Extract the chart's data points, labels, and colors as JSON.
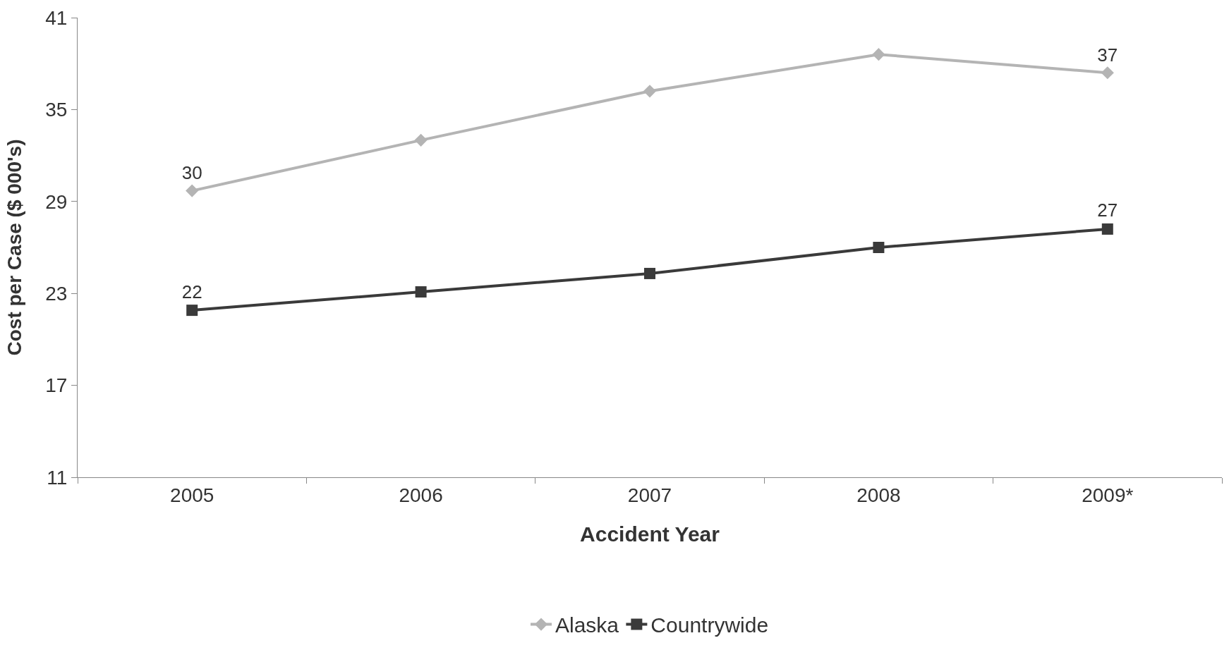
{
  "chart_data": {
    "type": "line",
    "xlabel": "Accident Year",
    "ylabel": "Cost per Case ($ 000's)",
    "categories": [
      "2005",
      "2006",
      "2007",
      "2008",
      "2009*"
    ],
    "series": [
      {
        "name": "Alaska",
        "color": "#b4b4b4",
        "marker": "diamond",
        "values": [
          29.7,
          33.0,
          36.2,
          38.6,
          37.4
        ],
        "value_labels": [
          "30",
          null,
          null,
          null,
          "37"
        ]
      },
      {
        "name": "Countrywide",
        "color": "#3a3a3a",
        "marker": "square",
        "values": [
          21.9,
          23.1,
          24.3,
          26.0,
          27.2
        ],
        "value_labels": [
          "22",
          null,
          null,
          null,
          "27"
        ]
      }
    ],
    "ylim": [
      11,
      41
    ],
    "yticks": [
      11,
      17,
      23,
      29,
      35,
      41
    ],
    "legend": "bottom",
    "line_style": "solid"
  }
}
